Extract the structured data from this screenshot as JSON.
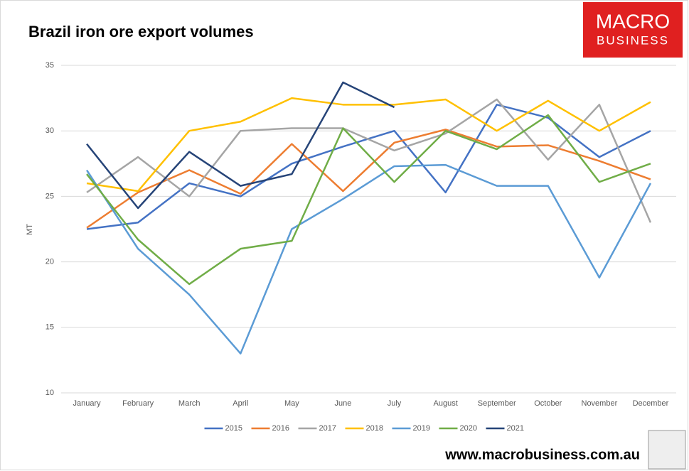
{
  "chart_data": {
    "type": "line",
    "title": "Brazil iron ore export volumes",
    "y_label": "MT",
    "brand": [
      "MACRO",
      "BUSINESS"
    ],
    "website": "www.macrobusiness.com.au",
    "categories": [
      "January",
      "February",
      "March",
      "April",
      "May",
      "June",
      "July",
      "August",
      "September",
      "October",
      "November",
      "December"
    ],
    "ylim": [
      10,
      35
    ],
    "yticks": [
      10,
      15,
      20,
      25,
      30,
      35
    ],
    "grid": true,
    "legend": "bottom",
    "series": [
      {
        "name": "2015",
        "color": "#4472c4",
        "values": [
          22.5,
          23,
          26,
          25,
          27.5,
          28.8,
          30,
          25.3,
          32,
          31,
          28,
          30
        ]
      },
      {
        "name": "2016",
        "color": "#ed7d31",
        "values": [
          22.6,
          25.3,
          27,
          25.2,
          29,
          25.4,
          29.1,
          30.1,
          28.8,
          28.9,
          27.7,
          26.3
        ]
      },
      {
        "name": "2017",
        "color": "#a5a5a5",
        "values": [
          25.3,
          28,
          25,
          30,
          30.2,
          30.2,
          28.5,
          29.8,
          32.4,
          27.8,
          32,
          23
        ]
      },
      {
        "name": "2018",
        "color": "#ffc000",
        "values": [
          26,
          25.4,
          30,
          30.7,
          32.5,
          32,
          32,
          32.4,
          30,
          32.3,
          30,
          32.2
        ]
      },
      {
        "name": "2019",
        "color": "#5b9bd5",
        "values": [
          27,
          21,
          17.5,
          13,
          22.5,
          24.8,
          27.3,
          27.4,
          25.8,
          25.8,
          18.8,
          26
        ]
      },
      {
        "name": "2020",
        "color": "#70ad47",
        "values": [
          26.7,
          21.7,
          18.3,
          21,
          21.6,
          30.2,
          26.1,
          30,
          28.6,
          31.2,
          26.1,
          27.5
        ]
      },
      {
        "name": "2021",
        "color": "#264478",
        "values": [
          29,
          24.1,
          28.4,
          25.8,
          26.7,
          33.7,
          31.8,
          null,
          null,
          null,
          null,
          null
        ]
      }
    ]
  }
}
